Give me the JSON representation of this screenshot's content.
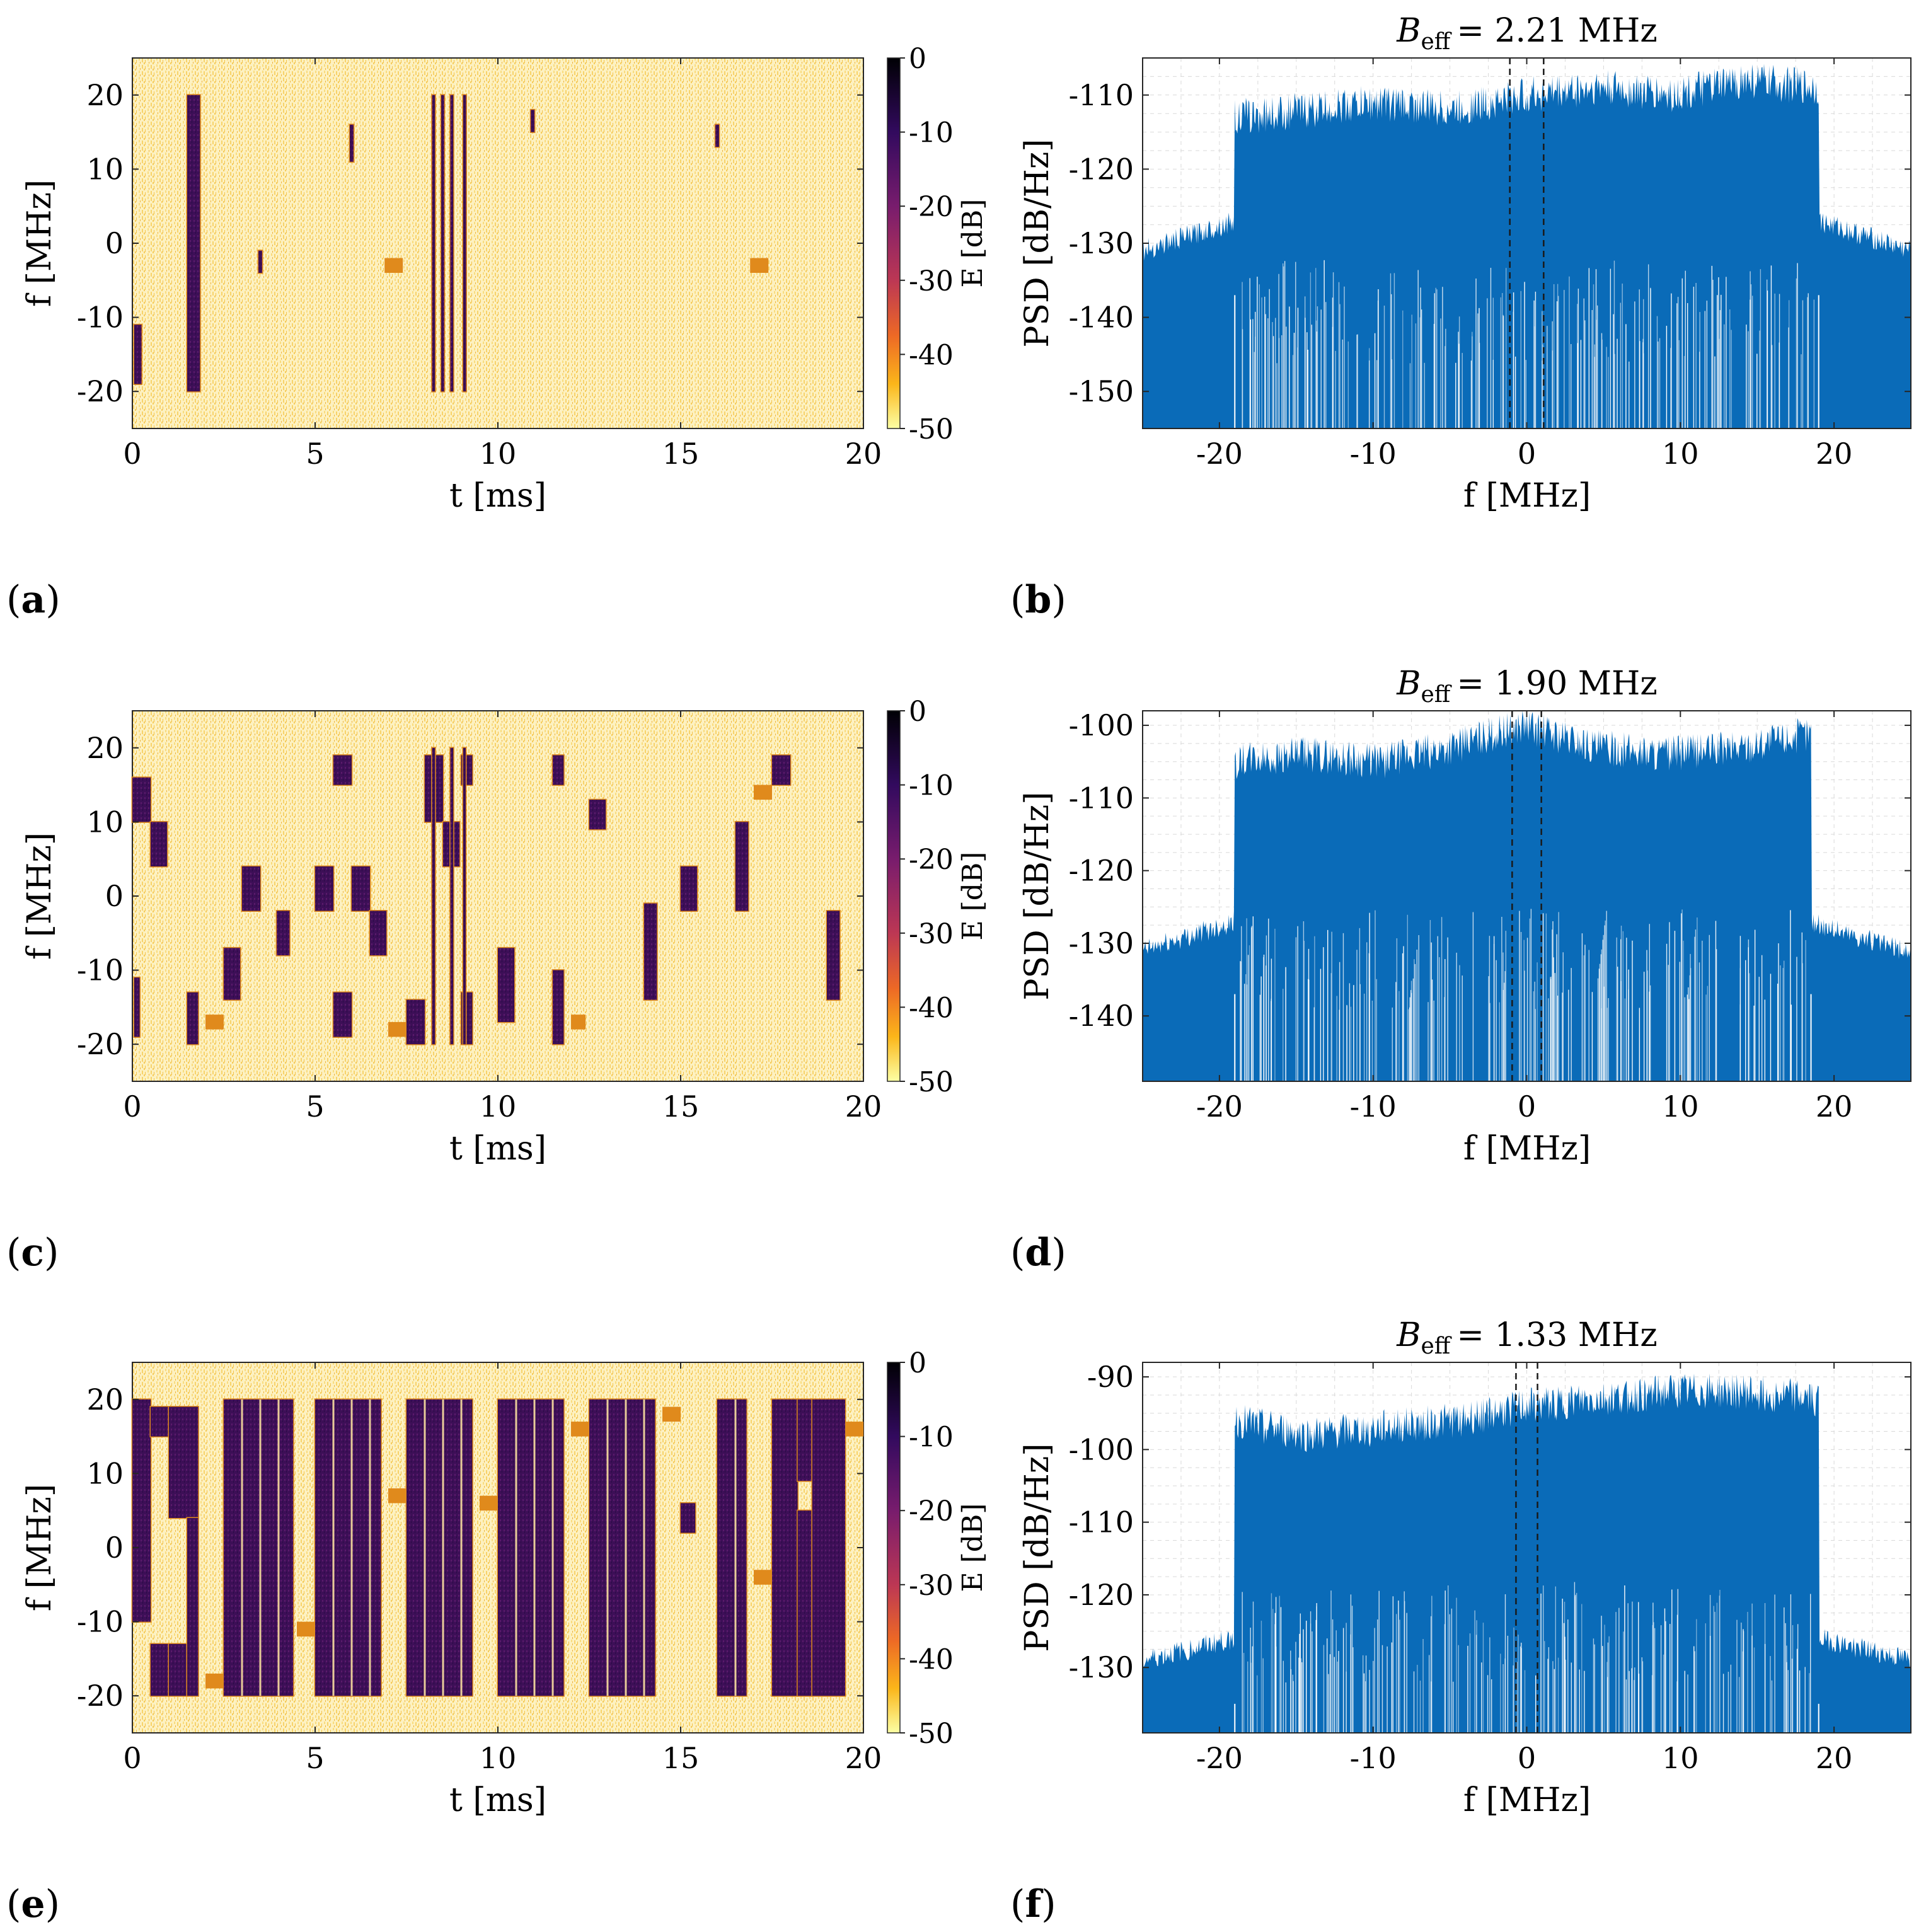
{
  "colors": {
    "psd_fill": "#0a6bb8",
    "grid": "#d9d9d9",
    "spec_bg": "#fbe9a6",
    "burst": "#3a0d52",
    "edge": "#e08a1c"
  },
  "colorbar": {
    "label": "E [dB]",
    "ticks": [
      "0",
      "-10",
      "-20",
      "-30",
      "-40",
      "-50"
    ]
  },
  "spectrogram_axes": {
    "xlabel": "t [ms]",
    "ylabel": "f [MHz]",
    "xticks": [
      "0",
      "5",
      "10",
      "15",
      "20"
    ],
    "yticks": [
      "20",
      "10",
      "0",
      "-10",
      "-20"
    ],
    "xlim": [
      0,
      20
    ],
    "ylim": [
      -25,
      25
    ]
  },
  "psd_axes": {
    "xlabel": "f [MHz]",
    "ylabel": "PSD [dB/Hz]",
    "xticks": [
      "-20",
      "-10",
      "0",
      "10",
      "20"
    ],
    "xlim": [
      -25,
      25
    ]
  },
  "chart_data": [
    {
      "panel": "a",
      "label": "(a)",
      "type": "heatmap",
      "description_units": "rectangles = bursts, t in ms, f in MHz",
      "bursts": [
        {
          "t0": 0.05,
          "t1": 0.25,
          "f0": -19,
          "f1": -11
        },
        {
          "t0": 1.5,
          "t1": 1.85,
          "f0": -20,
          "f1": 20
        },
        {
          "t0": 5.95,
          "t1": 6.05,
          "f0": 11,
          "f1": 16
        },
        {
          "t0": 3.45,
          "t1": 3.55,
          "f0": -4,
          "f1": -1
        },
        {
          "t0": 8.2,
          "t1": 8.28,
          "f0": -20,
          "f1": 20
        },
        {
          "t0": 8.45,
          "t1": 8.53,
          "f0": -20,
          "f1": 20
        },
        {
          "t0": 8.7,
          "t1": 8.78,
          "f0": -20,
          "f1": 20
        },
        {
          "t0": 9.05,
          "t1": 9.13,
          "f0": -20,
          "f1": 20
        },
        {
          "t0": 10.9,
          "t1": 11.0,
          "f0": 15,
          "f1": 18
        },
        {
          "t0": 15.95,
          "t1": 16.05,
          "f0": 13,
          "f1": 16
        }
      ],
      "edge_bursts": [
        {
          "t0": 6.9,
          "t1": 7.4,
          "f0": -4,
          "f1": -2
        },
        {
          "t0": 16.9,
          "t1": 17.4,
          "f0": -4,
          "f1": -2
        }
      ]
    },
    {
      "panel": "b",
      "label": "(b)",
      "type": "area",
      "title_prefix": "B",
      "title_sub": "eff",
      "title_value": "= 2.21 MHz",
      "ylim": [
        -155,
        -105
      ],
      "yticks": [
        "-110",
        "-120",
        "-130",
        "-140",
        "-150"
      ],
      "ytick_values": [
        -110,
        -120,
        -130,
        -140,
        -150
      ],
      "band_edges_mhz": [
        -19,
        19
      ],
      "noise_floor_db": -131,
      "noise_floor_edge_db": -127,
      "band_top_db": [
        -113,
        -112,
        -111,
        -112,
        -110,
        -109,
        -110,
        -108,
        -109
      ],
      "band_bottom_db": -142,
      "vlines_mhz": [
        -1.1,
        1.1
      ]
    },
    {
      "panel": "c",
      "label": "(c)",
      "type": "heatmap",
      "description_units": "rectangles = bursts, t in ms, f in MHz",
      "bursts": [
        {
          "t0": 0.0,
          "t1": 0.5,
          "f0": 10,
          "f1": 16
        },
        {
          "t0": 0.5,
          "t1": 0.95,
          "f0": 4,
          "f1": 10
        },
        {
          "t0": 0.05,
          "t1": 0.2,
          "f0": -19,
          "f1": -11
        },
        {
          "t0": 1.5,
          "t1": 1.8,
          "f0": -20,
          "f1": -13
        },
        {
          "t0": 2.5,
          "t1": 2.95,
          "f0": -14,
          "f1": -7
        },
        {
          "t0": 3.0,
          "t1": 3.5,
          "f0": -2,
          "f1": 4
        },
        {
          "t0": 3.95,
          "t1": 4.3,
          "f0": -8,
          "f1": -2
        },
        {
          "t0": 5.0,
          "t1": 5.5,
          "f0": -2,
          "f1": 4
        },
        {
          "t0": 5.5,
          "t1": 6.0,
          "f0": -19,
          "f1": -13
        },
        {
          "t0": 5.5,
          "t1": 6.0,
          "f0": 15,
          "f1": 19
        },
        {
          "t0": 6.0,
          "t1": 6.5,
          "f0": -2,
          "f1": 4
        },
        {
          "t0": 6.5,
          "t1": 6.95,
          "f0": -8,
          "f1": -2
        },
        {
          "t0": 7.5,
          "t1": 8.0,
          "f0": -20,
          "f1": -14
        },
        {
          "t0": 8.0,
          "t1": 8.5,
          "f0": 10,
          "f1": 19
        },
        {
          "t0": 8.5,
          "t1": 8.95,
          "f0": 4,
          "f1": 10
        },
        {
          "t0": 9.0,
          "t1": 9.3,
          "f0": -20,
          "f1": -13
        },
        {
          "t0": 9.0,
          "t1": 9.3,
          "f0": 15,
          "f1": 19
        },
        {
          "t0": 10.0,
          "t1": 10.45,
          "f0": -17,
          "f1": -7
        },
        {
          "t0": 11.5,
          "t1": 11.8,
          "f0": -20,
          "f1": -10
        },
        {
          "t0": 11.5,
          "t1": 11.8,
          "f0": 15,
          "f1": 19
        },
        {
          "t0": 12.5,
          "t1": 12.95,
          "f0": 9,
          "f1": 13
        },
        {
          "t0": 14.0,
          "t1": 14.35,
          "f0": -14,
          "f1": -1
        },
        {
          "t0": 15.0,
          "t1": 15.45,
          "f0": -2,
          "f1": 4
        },
        {
          "t0": 16.5,
          "t1": 16.85,
          "f0": -2,
          "f1": 10
        },
        {
          "t0": 17.5,
          "t1": 18.0,
          "f0": 15,
          "f1": 19
        },
        {
          "t0": 19.0,
          "t1": 19.35,
          "f0": -14,
          "f1": -2
        },
        {
          "t0": 8.2,
          "t1": 8.28,
          "f0": -20,
          "f1": 20
        },
        {
          "t0": 8.7,
          "t1": 8.78,
          "f0": -20,
          "f1": 20
        },
        {
          "t0": 9.05,
          "t1": 9.12,
          "f0": -20,
          "f1": 20
        }
      ],
      "edge_bursts": [
        {
          "t0": 2.0,
          "t1": 2.5,
          "f0": -18,
          "f1": -16
        },
        {
          "t0": 7.0,
          "t1": 7.5,
          "f0": -19,
          "f1": -17
        },
        {
          "t0": 12.0,
          "t1": 12.4,
          "f0": -18,
          "f1": -16
        },
        {
          "t0": 17.0,
          "t1": 17.5,
          "f0": 13,
          "f1": 15
        }
      ]
    },
    {
      "panel": "d",
      "label": "(d)",
      "type": "area",
      "title_prefix": "B",
      "title_sub": "eff",
      "title_value": "= 1.90 MHz",
      "ylim": [
        -149,
        -98
      ],
      "yticks": [
        "-100",
        "-110",
        "-120",
        "-130",
        "-140"
      ],
      "ytick_values": [
        -100,
        -110,
        -120,
        -130,
        -140
      ],
      "band_edges_mhz": [
        -19,
        18.5
      ],
      "noise_floor_db": -131,
      "noise_floor_edge_db": -127,
      "band_top_db": [
        -105,
        -104,
        -105,
        -103,
        -100,
        -103,
        -104,
        -103,
        -101
      ],
      "band_bottom_db": -135,
      "vlines_mhz": [
        -0.95,
        0.95
      ]
    },
    {
      "panel": "e",
      "label": "(e)",
      "type": "heatmap",
      "description_units": "rectangles = bursts, t in ms, f in MHz",
      "bursts": [
        {
          "t0": 0.0,
          "t1": 0.5,
          "f0": -10,
          "f1": 20
        },
        {
          "t0": 0.5,
          "t1": 1.0,
          "f0": -20,
          "f1": -13
        },
        {
          "t0": 0.5,
          "t1": 1.0,
          "f0": 15,
          "f1": 19
        },
        {
          "t0": 1.0,
          "t1": 1.5,
          "f0": -20,
          "f1": -13
        },
        {
          "t0": 1.0,
          "t1": 1.8,
          "f0": 4,
          "f1": 19
        },
        {
          "t0": 1.5,
          "t1": 1.8,
          "f0": -20,
          "f1": 4
        },
        {
          "t0": 2.5,
          "t1": 4.4,
          "f0": -20,
          "f1": 20
        },
        {
          "t0": 5.0,
          "t1": 6.8,
          "f0": -20,
          "f1": 20
        },
        {
          "t0": 7.5,
          "t1": 9.3,
          "f0": -20,
          "f1": 20
        },
        {
          "t0": 10.0,
          "t1": 11.8,
          "f0": -20,
          "f1": 20
        },
        {
          "t0": 12.5,
          "t1": 14.3,
          "f0": -20,
          "f1": 20
        },
        {
          "t0": 15.0,
          "t1": 15.4,
          "f0": 2,
          "f1": 6
        },
        {
          "t0": 16.0,
          "t1": 16.8,
          "f0": -20,
          "f1": 20
        },
        {
          "t0": 17.5,
          "t1": 18.2,
          "f0": -20,
          "f1": 20
        },
        {
          "t0": 18.2,
          "t1": 18.6,
          "f0": -20,
          "f1": 5
        },
        {
          "t0": 18.2,
          "t1": 18.6,
          "f0": 9,
          "f1": 20
        },
        {
          "t0": 18.6,
          "t1": 19.5,
          "f0": -20,
          "f1": 20
        }
      ],
      "edge_bursts": [
        {
          "t0": 2.0,
          "t1": 2.5,
          "f0": -19,
          "f1": -17
        },
        {
          "t0": 4.5,
          "t1": 5.0,
          "f0": -12,
          "f1": -10
        },
        {
          "t0": 7.0,
          "t1": 7.5,
          "f0": 6,
          "f1": 8
        },
        {
          "t0": 9.5,
          "t1": 10.0,
          "f0": 5,
          "f1": 7
        },
        {
          "t0": 12.0,
          "t1": 12.5,
          "f0": 15,
          "f1": 17
        },
        {
          "t0": 14.5,
          "t1": 15.0,
          "f0": 17,
          "f1": 19
        },
        {
          "t0": 17.0,
          "t1": 17.5,
          "f0": -5,
          "f1": -3
        },
        {
          "t0": 19.5,
          "t1": 20.0,
          "f0": 15,
          "f1": 17
        }
      ],
      "gaps_t": [
        3.0,
        3.5,
        4.0,
        5.5,
        6.0,
        6.5,
        8.0,
        8.5,
        9.0,
        10.5,
        11.0,
        11.5,
        13.0,
        13.5,
        14.0,
        16.5
      ]
    },
    {
      "panel": "f",
      "label": "(f)",
      "type": "area",
      "title_prefix": "B",
      "title_sub": "eff",
      "title_value": "= 1.33 MHz",
      "ylim": [
        -139,
        -88
      ],
      "yticks": [
        "-90",
        "-100",
        "-110",
        "-120",
        "-130"
      ],
      "ytick_values": [
        -90,
        -100,
        -110,
        -120,
        -130
      ],
      "band_edges_mhz": [
        -19,
        19
      ],
      "noise_floor_db": -129,
      "noise_floor_edge_db": -126,
      "band_top_db": [
        -96,
        -98,
        -97,
        -96,
        -94,
        -93,
        -92,
        -92,
        -93
      ],
      "band_bottom_db": -128,
      "vlines_mhz": [
        -0.7,
        0.7
      ]
    }
  ]
}
